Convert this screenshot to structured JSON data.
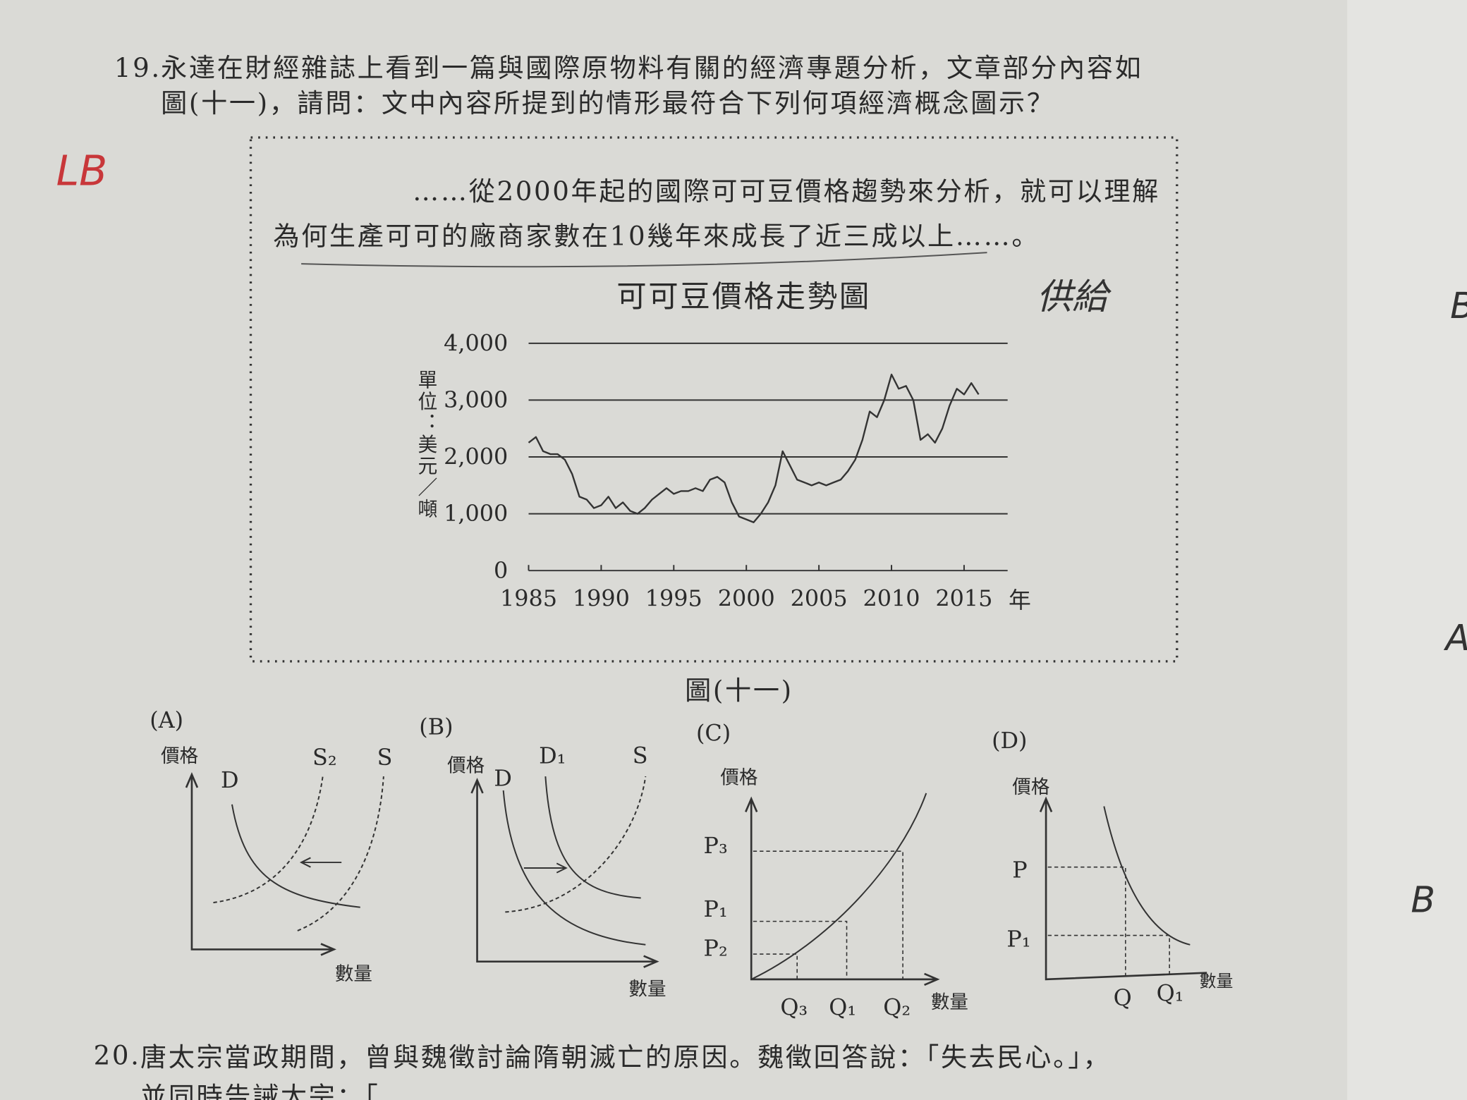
{
  "question19": {
    "number": "19.",
    "lines": [
      "永達在財經雜誌上看到一篇與國際原物料有關的經濟專題分析，文章部分內容如",
      "圖(十一)，請問：文中內容所提到的情形最符合下列何項經濟概念圖示？"
    ]
  },
  "excerpt": [
    "……從2000年起的國際可可豆價格趨勢來分析，就可以理解",
    "為何生產可可的廠商家數在10幾年來成長了近三成以上……。"
  ],
  "chart_data": {
    "type": "line",
    "title": "可可豆價格走勢圖",
    "y_label": "單位：美元／噸",
    "x_unit": "年",
    "x": [
      1985,
      1985.5,
      1986,
      1986.5,
      1987,
      1987.5,
      1988,
      1988.5,
      1989,
      1989.5,
      1990,
      1990.5,
      1991,
      1991.5,
      1992,
      1992.5,
      1993,
      1993.5,
      1994,
      1994.5,
      1995,
      1995.5,
      1996,
      1996.5,
      1997,
      1997.5,
      1998,
      1998.5,
      1999,
      1999.5,
      2000,
      2000.5,
      2001,
      2001.5,
      2002,
      2002.5,
      2003,
      2003.5,
      2004,
      2004.5,
      2005,
      2005.5,
      2006,
      2006.5,
      2007,
      2007.5,
      2008,
      2008.5,
      2009,
      2009.5,
      2010,
      2010.5,
      2011,
      2011.5,
      2012,
      2012.5,
      2013,
      2013.5,
      2014,
      2014.5,
      2015,
      2015.5,
      2016
    ],
    "values": [
      2250,
      2350,
      2100,
      2050,
      2050,
      1950,
      1700,
      1300,
      1250,
      1100,
      1150,
      1300,
      1100,
      1200,
      1050,
      1000,
      1100,
      1250,
      1350,
      1450,
      1350,
      1400,
      1400,
      1450,
      1400,
      1600,
      1650,
      1550,
      1200,
      950,
      900,
      850,
      1000,
      1200,
      1500,
      2100,
      1850,
      1600,
      1550,
      1500,
      1550,
      1500,
      1550,
      1600,
      1750,
      1950,
      2300,
      2800,
      2700,
      3000,
      3450,
      3200,
      3250,
      3000,
      2300,
      2400,
      2250,
      2500,
      2900,
      3200,
      3100,
      3300,
      3100
    ],
    "color": "#333333",
    "xlim": [
      1985,
      2018
    ],
    "xticks": [
      1985,
      1990,
      1995,
      2000,
      2005,
      2010,
      2015
    ],
    "ylim": [
      0,
      4000
    ],
    "yticks": [
      0,
      {
        "value": 1000,
        "label": "1,000"
      },
      {
        "value": 2000,
        "label": "2,000"
      },
      {
        "value": 3000,
        "label": "3,000"
      },
      {
        "value": 4000,
        "label": "4,000"
      }
    ],
    "grid": true
  },
  "caption": "圖(十一)",
  "options": [
    {
      "letter": "(A)",
      "labels": [
        "價格",
        "D",
        "S₂",
        "S",
        "數量"
      ]
    },
    {
      "letter": "(B)",
      "labels": [
        "價格",
        "D",
        "D₁",
        "S",
        "數量"
      ]
    },
    {
      "letter": "(C)",
      "labels": [
        "價格",
        "P₃",
        "P₁",
        "P₂",
        "Q₃",
        "Q₁",
        "Q₂",
        "數量"
      ]
    },
    {
      "letter": "(D)",
      "labels": [
        "價格",
        "P",
        "P₁",
        "Q",
        "Q₁",
        "數量"
      ]
    }
  ],
  "question20": {
    "number": "20.",
    "lines": [
      "唐太宗當政期間，曾與魏徵討論隋朝滅亡的原因。魏徵回答說：「失去民心。」，",
      "並同時告誡太宗：「"
    ]
  },
  "handwriting": [
    "LB",
    "供給",
    "B",
    "A",
    "B"
  ]
}
